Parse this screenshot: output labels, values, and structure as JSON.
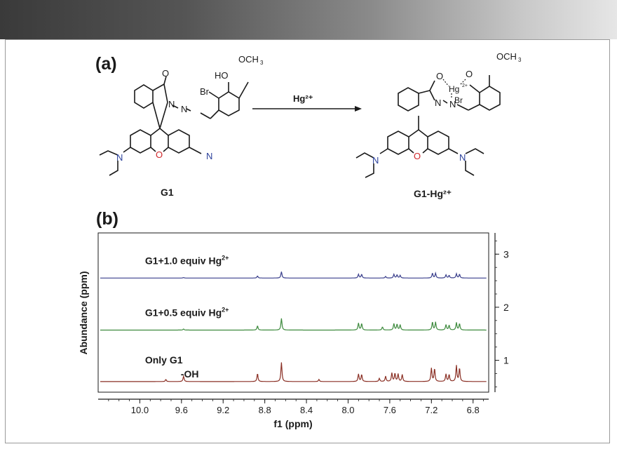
{
  "panel_a": {
    "label": "(a)",
    "reagent": "Hg²⁺",
    "left_compound": {
      "name": "G1",
      "atoms": {
        "oxo": "O",
        "ho": "HO",
        "och3": "OCH",
        "och3_sub": "3",
        "br": "Br",
        "n1": "N",
        "n2": "N",
        "ring_o": "O",
        "n_left": "N",
        "n_right": "N"
      }
    },
    "right_compound": {
      "name": "G1-Hg²⁺",
      "atoms": {
        "och3": "OCH",
        "och3_sub": "3",
        "o1": "O",
        "o2": "O",
        "hg": "Hg",
        "hg_sup": "2+",
        "br": "Br",
        "n1": "N",
        "n2": "N",
        "ring_o": "O",
        "n_left": "N",
        "n_right": "N"
      }
    },
    "colors": {
      "nitrogen": "#2a3f9a",
      "oxygen": "#d0262a",
      "bond": "#1a1a1a"
    }
  },
  "panel_b": {
    "label": "(b)",
    "chart_data": {
      "type": "line",
      "xlabel": "f1 (ppm)",
      "ylabel": "Abundance (ppm)",
      "xlim": [
        10.4,
        6.65
      ],
      "ylim": [
        0.4,
        3.4
      ],
      "x_ticks": [
        "10.0",
        "9.6",
        "9.2",
        "8.8",
        "8.4",
        "8.0",
        "7.6",
        "7.2",
        "6.8"
      ],
      "y_ticks": [
        "1",
        "2",
        "3"
      ],
      "grid": false,
      "series": [
        {
          "name": "G1+1.0 equiv Hg",
          "name_sup": "2+",
          "color": "#3a3f8c",
          "baseline": 2.55,
          "peaks": [
            {
              "x": 9.58,
              "h": 0.01
            },
            {
              "x": 8.87,
              "h": 0.04
            },
            {
              "x": 8.64,
              "h": 0.12
            },
            {
              "x": 7.9,
              "h": 0.07
            },
            {
              "x": 7.87,
              "h": 0.07
            },
            {
              "x": 7.64,
              "h": 0.03
            },
            {
              "x": 7.56,
              "h": 0.07
            },
            {
              "x": 7.53,
              "h": 0.06
            },
            {
              "x": 7.5,
              "h": 0.05
            },
            {
              "x": 7.19,
              "h": 0.09
            },
            {
              "x": 7.16,
              "h": 0.09
            },
            {
              "x": 7.06,
              "h": 0.06
            },
            {
              "x": 7.03,
              "h": 0.05
            },
            {
              "x": 6.96,
              "h": 0.08
            },
            {
              "x": 6.93,
              "h": 0.07
            }
          ]
        },
        {
          "name": "G1+0.5 equiv Hg",
          "name_sup": "2+",
          "color": "#3d8a3d",
          "baseline": 1.57,
          "peaks": [
            {
              "x": 9.58,
              "h": 0.02
            },
            {
              "x": 8.87,
              "h": 0.08
            },
            {
              "x": 8.64,
              "h": 0.22
            },
            {
              "x": 7.9,
              "h": 0.13
            },
            {
              "x": 7.87,
              "h": 0.12
            },
            {
              "x": 7.67,
              "h": 0.06
            },
            {
              "x": 7.56,
              "h": 0.12
            },
            {
              "x": 7.53,
              "h": 0.11
            },
            {
              "x": 7.5,
              "h": 0.1
            },
            {
              "x": 7.19,
              "h": 0.15
            },
            {
              "x": 7.16,
              "h": 0.15
            },
            {
              "x": 7.06,
              "h": 0.1
            },
            {
              "x": 7.03,
              "h": 0.09
            },
            {
              "x": 6.96,
              "h": 0.14
            },
            {
              "x": 6.93,
              "h": 0.12
            }
          ]
        },
        {
          "name": "Only G1",
          "name_sup": "",
          "color": "#8a2f24",
          "baseline": 0.6,
          "peaks": [
            {
              "x": 9.75,
              "h": 0.04
            },
            {
              "x": 9.58,
              "h": 0.1
            },
            {
              "x": 8.87,
              "h": 0.15
            },
            {
              "x": 8.64,
              "h": 0.36
            },
            {
              "x": 8.28,
              "h": 0.04
            },
            {
              "x": 7.9,
              "h": 0.14
            },
            {
              "x": 7.87,
              "h": 0.13
            },
            {
              "x": 7.7,
              "h": 0.06
            },
            {
              "x": 7.64,
              "h": 0.1
            },
            {
              "x": 7.58,
              "h": 0.16
            },
            {
              "x": 7.55,
              "h": 0.15
            },
            {
              "x": 7.52,
              "h": 0.14
            },
            {
              "x": 7.48,
              "h": 0.13
            },
            {
              "x": 7.2,
              "h": 0.25
            },
            {
              "x": 7.17,
              "h": 0.24
            },
            {
              "x": 7.06,
              "h": 0.14
            },
            {
              "x": 7.03,
              "h": 0.13
            },
            {
              "x": 6.96,
              "h": 0.3
            },
            {
              "x": 6.93,
              "h": 0.25
            }
          ]
        }
      ],
      "annotations": [
        {
          "text": "-OH",
          "x": 9.58
        }
      ]
    }
  }
}
